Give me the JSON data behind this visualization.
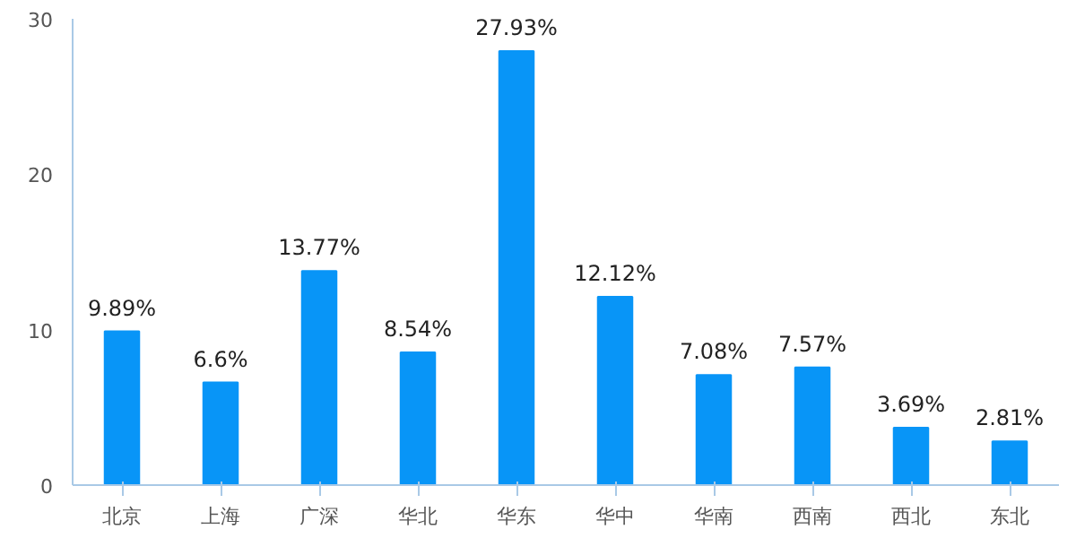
{
  "chart_data": {
    "type": "bar",
    "categories": [
      "北京",
      "上海",
      "广深",
      "华北",
      "华东",
      "华中",
      "华南",
      "西南",
      "西北",
      "东北"
    ],
    "values": [
      9.89,
      6.6,
      13.77,
      8.54,
      27.93,
      12.12,
      7.08,
      7.57,
      3.69,
      2.81
    ],
    "value_labels": [
      "9.89%",
      "6.6%",
      "13.77%",
      "8.54%",
      "27.93%",
      "12.12%",
      "7.08%",
      "7.57%",
      "3.69%",
      "2.81%"
    ],
    "color": "#0895f7",
    "ylim": [
      0,
      30
    ],
    "yticks": [
      0,
      10,
      20,
      30
    ],
    "grid": false
  }
}
